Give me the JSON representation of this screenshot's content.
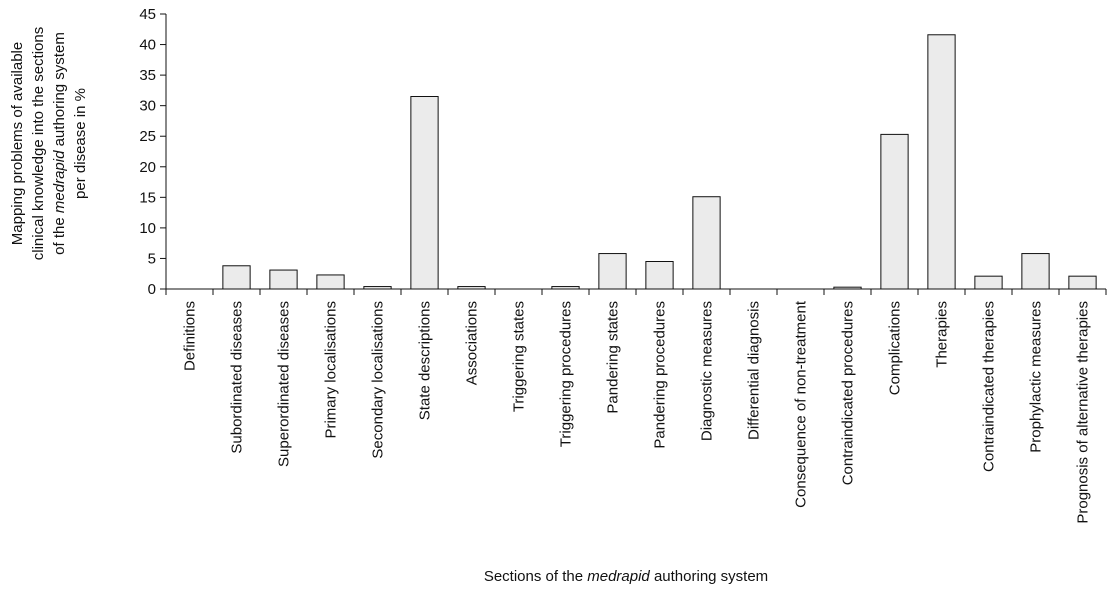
{
  "chart_data": {
    "type": "bar",
    "categories": [
      "Definitions",
      "Subordinated diseases",
      "Superordinated diseases",
      "Primary localisations",
      "Secondary localisations",
      "State descriptions",
      "Associations",
      "Triggering states",
      "Triggering procedures",
      "Pandering states",
      "Pandering procedures",
      "Diagnostic measures",
      "Differential diagnosis",
      "Consequence of non-treatment",
      "Contraindicated procedures",
      "Complications",
      "Therapies",
      "Contraindicated therapies",
      "Prophylactic measures",
      "Prognosis of alternative therapies"
    ],
    "values": [
      0,
      3.8,
      3.1,
      2.3,
      0.4,
      31.5,
      0.4,
      0,
      0.4,
      5.8,
      4.5,
      15.1,
      0,
      0,
      0.3,
      25.3,
      41.6,
      2.1,
      5.8,
      2.1
    ],
    "ylim": [
      0,
      45
    ],
    "yticks": [
      0,
      5,
      10,
      15,
      20,
      25,
      30,
      35,
      40,
      45
    ],
    "ylabel_lines": [
      [
        {
          "t": "Mapping problems of available",
          "i": false
        }
      ],
      [
        {
          "t": "clinical knowledge into the sections",
          "i": false
        }
      ],
      [
        {
          "t": "of the ",
          "i": false
        },
        {
          "t": "medrapid",
          "i": true
        },
        {
          "t": " authoring system",
          "i": false
        }
      ],
      [
        {
          "t": "per disease in %",
          "i": false
        }
      ]
    ],
    "xlabel_parts": [
      {
        "t": "Sections of the ",
        "i": false
      },
      {
        "t": "medrapid",
        "i": true
      },
      {
        "t": " authoring system",
        "i": false
      }
    ],
    "grid": false,
    "bar_color": "#ebebeb"
  }
}
